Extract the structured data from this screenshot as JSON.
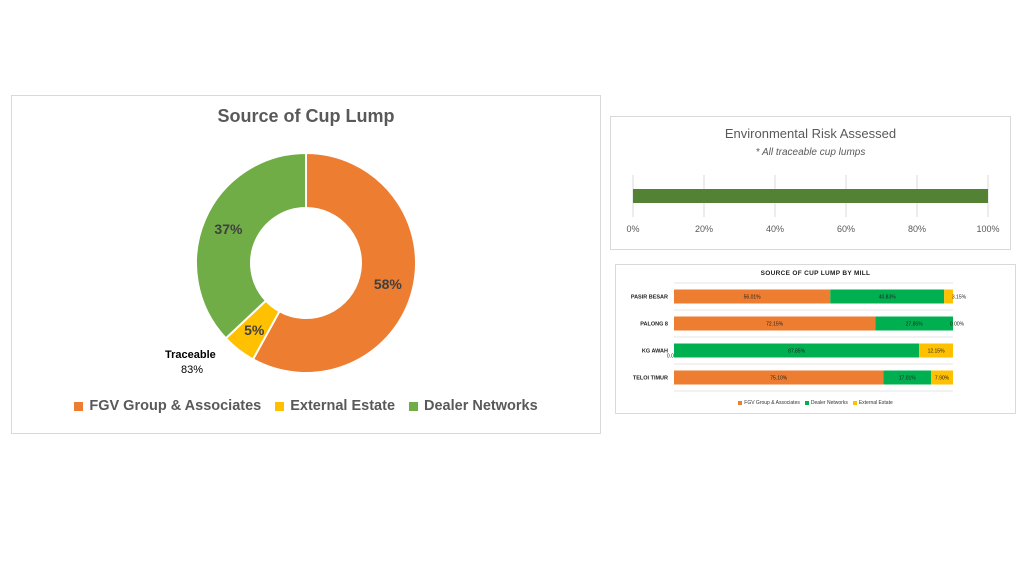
{
  "chart_data": [
    {
      "type": "pie",
      "title": "Source of Cup Lump",
      "categories": [
        "FGV Group & Associates",
        "External Estate",
        "Dealer Networks"
      ],
      "values": [
        58,
        5,
        37
      ],
      "labels": [
        "58%",
        "5%",
        "37%"
      ],
      "colors": [
        "#ED7D31",
        "#FFC000",
        "#70AD47"
      ],
      "annotation": {
        "label": "Traceable",
        "value": "83%"
      },
      "legend": "bottom",
      "donut": true
    },
    {
      "type": "bar",
      "orientation": "horizontal",
      "title": "Environmental Risk Assessed",
      "subtitle": "* All traceable cup lumps",
      "values": [
        100
      ],
      "color": "#548235",
      "xlim": [
        0,
        100
      ],
      "xticks": [
        "0%",
        "20%",
        "40%",
        "60%",
        "80%",
        "100%"
      ],
      "grid": true
    },
    {
      "type": "bar",
      "orientation": "horizontal",
      "stacked": true,
      "title": "SOURCE OF CUP LUMP BY MILL",
      "categories": [
        "PASIR BESAR",
        "PALONG 8",
        "KG AWAH",
        "TELOI TIMUR"
      ],
      "series": [
        {
          "name": "FGV Group & Associates",
          "color": "#ED7D31",
          "values": [
            56.01,
            72.15,
            0.0,
            75.1
          ],
          "labels": [
            "56.01%",
            "72.15%",
            "0.00%",
            "75.10%"
          ]
        },
        {
          "name": "Dealer Networks",
          "color": "#00B050",
          "values": [
            40.83,
            27.85,
            87.85,
            17.01
          ],
          "labels": [
            "40.83%",
            "27.85%",
            "87.85%",
            "17.01%"
          ]
        },
        {
          "name": "External Estate",
          "color": "#FFC000",
          "values": [
            3.15,
            0.0,
            12.15,
            7.9
          ],
          "labels": [
            "3.15%",
            "0.00%",
            "12.15%",
            "7.90%"
          ]
        }
      ],
      "xlim": [
        0,
        100
      ],
      "legend": "bottom"
    }
  ]
}
